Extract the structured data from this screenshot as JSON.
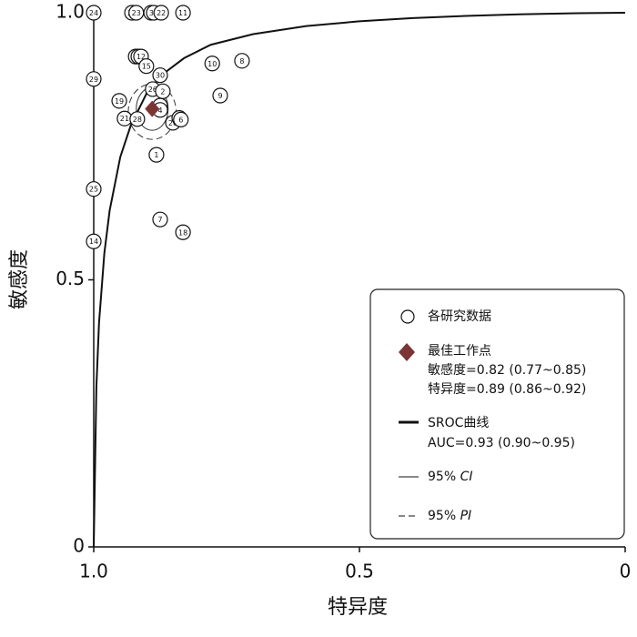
{
  "chart_data": {
    "type": "scatter",
    "xlabel": "特异度",
    "ylabel": "敏感度",
    "xlim": [
      1,
      0
    ],
    "ylim": [
      0,
      1
    ],
    "xticks": [
      {
        "value": 1,
        "label": "1.0"
      },
      0.5,
      0
    ],
    "yticks": [
      0,
      0.5,
      {
        "value": 1,
        "label": "1.0"
      }
    ],
    "series": [
      {
        "name": "各研究数据",
        "color": "#111111",
        "point_labels": [
          "24",
          "27",
          "23",
          "3",
          "31",
          "22",
          "11",
          "17",
          "13",
          "12",
          "15",
          "30",
          "10",
          "8",
          "29",
          "26",
          "2",
          "9",
          "19",
          "5",
          "4",
          "21",
          "28",
          "20",
          "16",
          "6",
          "1",
          "25",
          "7",
          "18",
          "14"
        ],
        "x": [
          1.0,
          0.928,
          0.92,
          0.892,
          0.887,
          0.873,
          0.832,
          0.921,
          0.916,
          0.911,
          0.901,
          0.875,
          0.777,
          0.721,
          1.0,
          0.889,
          0.87,
          0.762,
          0.952,
          0.875,
          0.875,
          0.942,
          0.918,
          0.851,
          0.839,
          0.836,
          0.882,
          1.0,
          0.875,
          0.832,
          1.0
        ],
        "values": [
          1.0,
          1.0,
          1.0,
          1.0,
          1.0,
          1.0,
          1.0,
          0.918,
          0.918,
          0.918,
          0.9,
          0.883,
          0.905,
          0.91,
          0.876,
          0.857,
          0.853,
          0.845,
          0.835,
          0.826,
          0.818,
          0.802,
          0.801,
          0.794,
          0.803,
          0.8,
          0.734,
          0.67,
          0.613,
          0.589,
          0.572
        ]
      },
      {
        "name": "最佳工作点",
        "color": "#7b3535",
        "x": [
          0.89
        ],
        "values": [
          0.82
        ],
        "details": [
          "敏感度=0.82 (0.77~0.85)",
          "特异度=0.89 (0.86~0.92)"
        ],
        "sens_ci": [
          0.77,
          0.85
        ],
        "spec_ci": [
          0.86,
          0.92
        ]
      },
      {
        "name": "SROC曲线",
        "color": "#111111",
        "details": [
          "AUC=0.93 (0.90~0.95)"
        ],
        "x": [
          1.0,
          0.995,
          0.99,
          0.98,
          0.97,
          0.95,
          0.93,
          0.9,
          0.87,
          0.83,
          0.78,
          0.7,
          0.6,
          0.5,
          0.4,
          0.3,
          0.2,
          0.1,
          0
        ],
        "values": [
          0,
          0.3,
          0.42,
          0.55,
          0.63,
          0.73,
          0.79,
          0.85,
          0.885,
          0.915,
          0.94,
          0.96,
          0.975,
          0.984,
          0.99,
          0.994,
          0.997,
          0.999,
          1.0
        ]
      }
    ],
    "region_legend": [
      {
        "prefix": "95%",
        "name": "CI"
      },
      {
        "prefix": "95%",
        "name": "PI"
      }
    ]
  }
}
